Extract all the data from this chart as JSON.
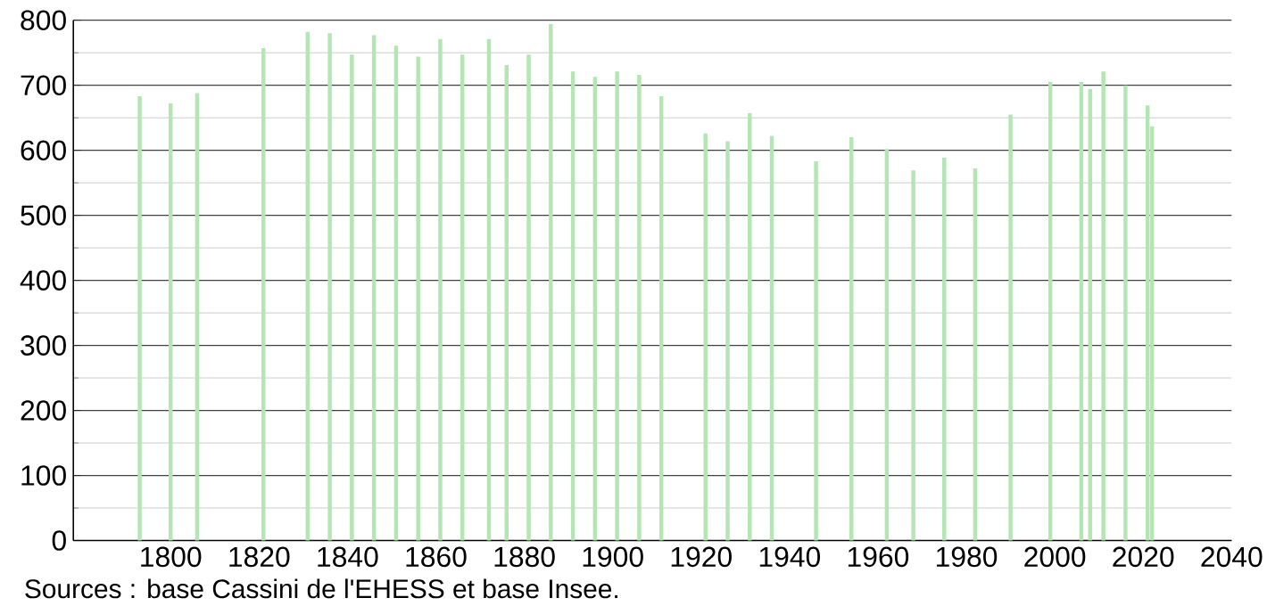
{
  "chart_data": {
    "type": "bar",
    "color": "#b3e6b3",
    "x": [
      1793,
      1800,
      1806,
      1821,
      1831,
      1836,
      1841,
      1846,
      1851,
      1856,
      1861,
      1866,
      1872,
      1876,
      1881,
      1886,
      1891,
      1896,
      1901,
      1906,
      1911,
      1921,
      1926,
      1931,
      1936,
      1946,
      1954,
      1962,
      1968,
      1975,
      1982,
      1990,
      1999,
      2006,
      2008,
      2011,
      2016,
      2021,
      2022
    ],
    "values": [
      683,
      672,
      688,
      757,
      782,
      780,
      747,
      777,
      761,
      744,
      771,
      747,
      771,
      731,
      747,
      794,
      721,
      713,
      721,
      716,
      683,
      626,
      614,
      657,
      622,
      583,
      620,
      602,
      569,
      589,
      572,
      655,
      705,
      705,
      694,
      721,
      700,
      669,
      637
    ],
    "xlim": [
      1778,
      2040
    ],
    "xticks": [
      1800,
      1820,
      1840,
      1860,
      1880,
      1900,
      1920,
      1940,
      1960,
      1980,
      2000,
      2020,
      2040
    ],
    "ylim": [
      0,
      800
    ],
    "yticks": [
      0,
      100,
      200,
      300,
      400,
      500,
      600,
      700,
      800
    ],
    "grid": "y",
    "annotations": [
      "Sources : base Cassini de l'EHESS et base Insee."
    ]
  }
}
